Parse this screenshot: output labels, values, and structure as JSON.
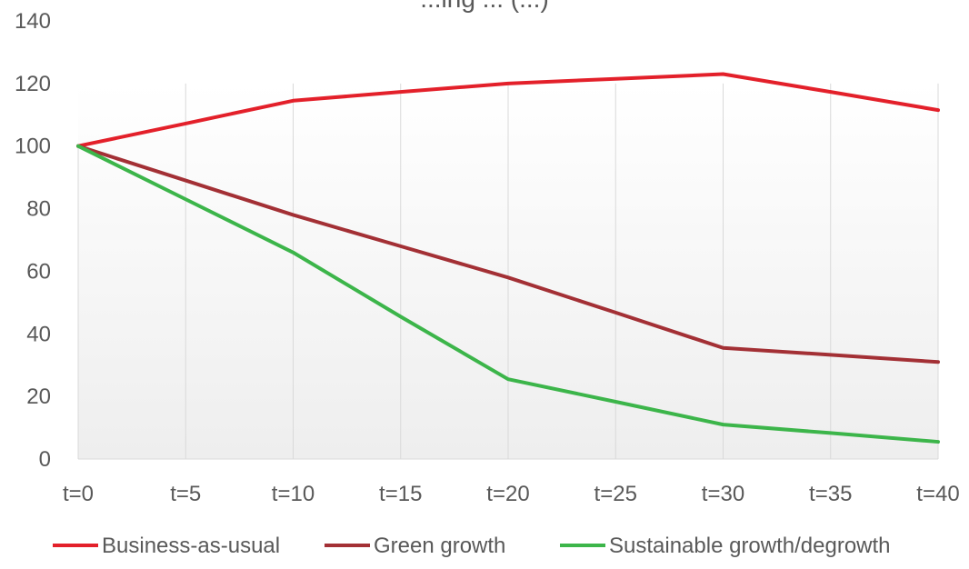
{
  "chart_data": {
    "type": "line",
    "title": "...ing ... (...)",
    "xlabel": "",
    "ylabel": "",
    "categories": [
      "t=0",
      "t=5",
      "t=10",
      "t=15",
      "t=20",
      "t=25",
      "t=30",
      "t=35",
      "t=40"
    ],
    "ylim": [
      0,
      140
    ],
    "yticks": [
      0,
      20,
      40,
      60,
      80,
      100,
      120,
      140
    ],
    "grid": "vertical",
    "legend_position": "bottom",
    "series": [
      {
        "name": "Business-as-usual",
        "color": "#e3202a",
        "values": [
          100,
          107.2,
          114.5,
          117.3,
          120,
          121.5,
          123,
          117.3,
          111.5
        ]
      },
      {
        "name": "Green growth",
        "color": "#a33035",
        "values": [
          100,
          89,
          78,
          68,
          58,
          46.8,
          35.5,
          33.3,
          31
        ]
      },
      {
        "name": "Sustainable growth/degrowth",
        "color": "#3cb54a",
        "values": [
          100,
          83,
          66,
          45.5,
          25.5,
          18.3,
          11,
          8.3,
          5.5
        ]
      }
    ]
  }
}
